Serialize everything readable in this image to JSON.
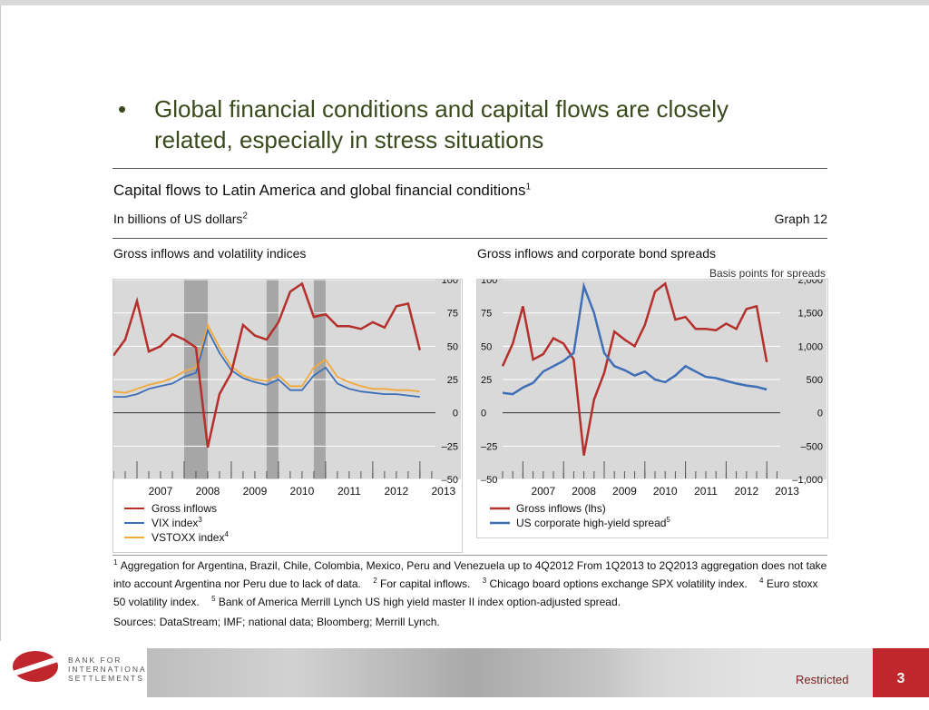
{
  "slide": {
    "bullet_glyph": "•",
    "headline": "Global financial conditions and capital flows are closely related, especially in stress situations",
    "restricted_label": "Restricted",
    "page_number": "3",
    "logo_text": [
      "BANK FOR",
      "INTERNATIONAL",
      "SETTLEMENTS"
    ]
  },
  "figure": {
    "title": "Capital flows to Latin America and global financial conditions",
    "title_sup": "1",
    "unit": "In billions of US dollars",
    "unit_sup": "2",
    "graph_number": "Graph 12",
    "footnotes": [
      {
        "n": "1",
        "text": "Aggregation for Argentina, Brazil, Chile, Colombia, Mexico, Peru and Venezuela up to 4Q2012 From 1Q2013 to 2Q2013 aggregation does not take into account Argentina nor Peru due to lack of data."
      },
      {
        "n": "2",
        "text": "For capital inflows."
      },
      {
        "n": "3",
        "text": "Chicago board options exchange SPX volatility index."
      },
      {
        "n": "4",
        "text": "Euro stoxx 50 volatility index."
      },
      {
        "n": "5",
        "text": "Bank of America Merrill Lynch US high yield master II index option-adjusted spread."
      }
    ],
    "sources": "Sources: DataStream; IMF; national data; Bloomberg; Merrill Lynch."
  },
  "colors": {
    "gross_inflows": "#b5302c",
    "vix": "#3f6fb6",
    "vstoxx": "#f2a93b",
    "hy_spread": "#3f6fb6",
    "plot_bg": "#d9d9d9",
    "shade": "#a6a6a6"
  },
  "chart_data": [
    {
      "type": "line",
      "title": "Gross inflows and volatility indices",
      "x_ticks": [
        "2007",
        "2008",
        "2009",
        "2010",
        "2011",
        "2012",
        "2013"
      ],
      "ylim": [
        -50,
        100
      ],
      "y_ticks": [
        "100",
        "75",
        "50",
        "25",
        "0",
        "–25",
        "–50"
      ],
      "y_ticks_values": [
        100,
        75,
        50,
        25,
        0,
        -25,
        -50
      ],
      "shaded_periods": [
        [
          2008.0,
          2008.5
        ],
        [
          2009.75,
          2010.0
        ],
        [
          2010.75,
          2011.0
        ]
      ],
      "series": [
        {
          "name": "Gross inflows",
          "x": [
            2006.5,
            2006.75,
            2007.0,
            2007.25,
            2007.5,
            2007.75,
            2008.0,
            2008.25,
            2008.5,
            2008.75,
            2009.0,
            2009.25,
            2009.5,
            2009.75,
            2010.0,
            2010.25,
            2010.5,
            2010.75,
            2011.0,
            2011.25,
            2011.5,
            2011.75,
            2012.0,
            2012.25,
            2012.5,
            2012.75,
            2013.0
          ],
          "values": [
            43,
            55,
            84,
            46,
            50,
            59,
            55,
            49,
            -26,
            14,
            30,
            66,
            58,
            55,
            68,
            91,
            97,
            72,
            74,
            65,
            65,
            63,
            68,
            64,
            80,
            82,
            47
          ]
        },
        {
          "name": "VIX index",
          "x": [
            2006.5,
            2006.75,
            2007.0,
            2007.25,
            2007.5,
            2007.75,
            2008.0,
            2008.25,
            2008.5,
            2008.75,
            2009.0,
            2009.25,
            2009.5,
            2009.75,
            2010.0,
            2010.25,
            2010.5,
            2010.75,
            2011.0,
            2011.25,
            2011.5,
            2011.75,
            2012.0,
            2012.25,
            2012.5,
            2012.75,
            2013.0
          ],
          "values": [
            12,
            12,
            14,
            18,
            20,
            22,
            27,
            30,
            62,
            45,
            32,
            26,
            23,
            21,
            25,
            17,
            17,
            28,
            34,
            22,
            18,
            16,
            15,
            14,
            14,
            13,
            12
          ]
        },
        {
          "name": "VSTOXX index",
          "x": [
            2006.5,
            2006.75,
            2007.0,
            2007.25,
            2007.5,
            2007.75,
            2008.0,
            2008.25,
            2008.5,
            2008.75,
            2009.0,
            2009.25,
            2009.5,
            2009.75,
            2010.0,
            2010.25,
            2010.5,
            2010.75,
            2011.0,
            2011.25,
            2011.5,
            2011.75,
            2012.0,
            2012.25,
            2012.5,
            2012.75,
            2013.0
          ],
          "values": [
            16,
            15,
            18,
            21,
            23,
            26,
            31,
            34,
            66,
            49,
            35,
            28,
            25,
            24,
            28,
            20,
            20,
            34,
            40,
            27,
            23,
            20,
            18,
            18,
            17,
            17,
            16
          ]
        }
      ],
      "legend": [
        "Gross inflows",
        "VIX index",
        "VSTOXX index"
      ],
      "legend_sups": [
        "",
        "3",
        "4"
      ]
    },
    {
      "type": "line",
      "title": "Gross inflows and corporate bond spreads",
      "right_axis_label": "Basis points for spreads",
      "x_ticks": [
        "2007",
        "2008",
        "2009",
        "2010",
        "2011",
        "2012",
        "2013"
      ],
      "ylim_left": [
        -50,
        100
      ],
      "ylim_right": [
        -1000,
        2000
      ],
      "y_ticks_left": [
        "100",
        "75",
        "50",
        "25",
        "0",
        "–25",
        "–50"
      ],
      "y_ticks_left_values": [
        100,
        75,
        50,
        25,
        0,
        -25,
        -50
      ],
      "y_ticks_right": [
        "2,000",
        "1,500",
        "1,000",
        "500",
        "0",
        "–500",
        "–1,000"
      ],
      "y_ticks_right_values": [
        2000,
        1500,
        1000,
        500,
        0,
        -500,
        -1000
      ],
      "series": [
        {
          "name": "Gross inflows (lhs)",
          "axis": "left",
          "x": [
            2006.5,
            2006.75,
            2007.0,
            2007.25,
            2007.5,
            2007.75,
            2008.0,
            2008.25,
            2008.5,
            2008.75,
            2009.0,
            2009.25,
            2009.5,
            2009.75,
            2010.0,
            2010.25,
            2010.5,
            2010.75,
            2011.0,
            2011.25,
            2011.5,
            2011.75,
            2012.0,
            2012.25,
            2012.5,
            2012.75,
            2013.0
          ],
          "values": [
            35,
            52,
            80,
            40,
            44,
            56,
            52,
            40,
            -32,
            10,
            30,
            61,
            55,
            50,
            66,
            91,
            97,
            70,
            72,
            63,
            63,
            62,
            67,
            63,
            78,
            80,
            38
          ]
        },
        {
          "name": "US corporate high-yield spread",
          "axis": "right",
          "x": [
            2006.5,
            2006.75,
            2007.0,
            2007.25,
            2007.5,
            2007.75,
            2008.0,
            2008.25,
            2008.5,
            2008.75,
            2009.0,
            2009.25,
            2009.5,
            2009.75,
            2010.0,
            2010.25,
            2010.5,
            2010.75,
            2011.0,
            2011.25,
            2011.5,
            2011.75,
            2012.0,
            2012.25,
            2012.5,
            2012.75,
            2013.0
          ],
          "values": [
            300,
            280,
            380,
            450,
            620,
            700,
            780,
            900,
            1900,
            1500,
            900,
            700,
            640,
            560,
            620,
            500,
            460,
            560,
            700,
            620,
            540,
            520,
            480,
            440,
            410,
            390,
            350
          ]
        }
      ],
      "legend": [
        "Gross inflows (lhs)",
        "US corporate high-yield spread"
      ],
      "legend_sups": [
        "",
        "5"
      ]
    }
  ]
}
